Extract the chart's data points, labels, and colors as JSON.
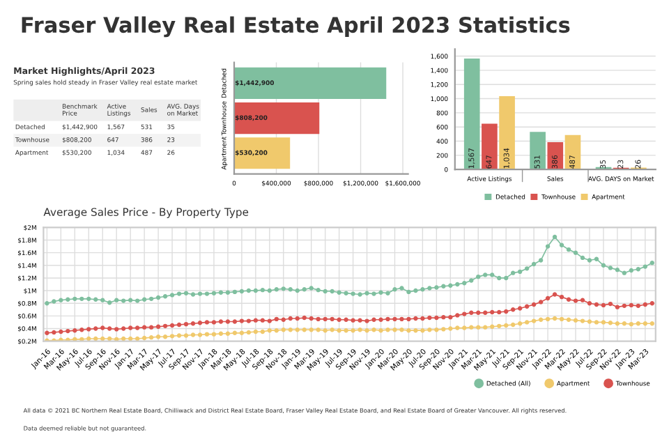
{
  "chart_data": [
    {
      "type": "other",
      "title": "Fraser Valley Real Estate April 2023 Statistics",
      "subtitle": "Market Highlights/April 2023",
      "annotations": [
        "Spring sales hold steady in Fraser Valley real estate market"
      ],
      "categories": [
        "Benchmark Price",
        "Active Listings",
        "Sales",
        "AVG. Days on Market"
      ],
      "y_categories": [
        "Detached",
        "Townhouse",
        "Apartment"
      ],
      "cell_labels": [
        [
          "$1,442,900",
          "1,567",
          "531",
          "35"
        ],
        [
          "$808,200",
          "647",
          "386",
          "23"
        ],
        [
          "$530,200",
          "1,034",
          "487",
          "26"
        ]
      ]
    },
    {
      "type": "bar",
      "orientation": "horizontal",
      "categories": [
        "Detached",
        "Townhouse",
        "Apartment"
      ],
      "values": [
        1442900,
        808200,
        530200
      ],
      "colors": [
        "#7fbf9f",
        "#d9534f",
        "#f0c96c"
      ],
      "value_labels": [
        "$1,442,900",
        "$808,200",
        "$530,200"
      ],
      "xlim": [
        0,
        1650000
      ],
      "xticks": [
        0,
        {
          "value": 400000,
          "label": "$400,000"
        },
        {
          "value": 800000,
          "label": "$800,000"
        },
        {
          "value": 1200000,
          "label": "$1,200,000"
        },
        {
          "value": 1600000,
          "label": "$1,600,000"
        }
      ],
      "grid": "x"
    },
    {
      "type": "bar",
      "categories": [
        "Active Listings",
        "Sales",
        "AVG. DAYS on Market"
      ],
      "series": [
        {
          "name": "Detached",
          "color": "#7fbf9f",
          "values": [
            1567,
            531,
            35
          ],
          "value_labels": [
            "1,567",
            "531",
            "35"
          ]
        },
        {
          "name": "Townhouse",
          "color": "#d9534f",
          "values": [
            647,
            386,
            23
          ],
          "value_labels": [
            "647",
            "386",
            "23"
          ]
        },
        {
          "name": "Apartment",
          "color": "#f0c96c",
          "values": [
            1034,
            487,
            26
          ],
          "value_labels": [
            "1,034",
            "487",
            "26"
          ]
        }
      ],
      "ylim": [
        0,
        1700
      ],
      "yticks": [
        0,
        200,
        400,
        600,
        800,
        {
          "value": 1000,
          "label": "1,000"
        },
        {
          "value": 1200,
          "label": "1,200"
        },
        {
          "value": 1400,
          "label": "1,400"
        },
        {
          "value": 1600,
          "label": "1,600"
        }
      ],
      "grid": "y",
      "legend": "bottom"
    },
    {
      "type": "line",
      "title": "Average Sales Price - By Property Type",
      "categories": [
        "Jan-16",
        null,
        "Mar-16",
        null,
        "May-16",
        null,
        "Jul-16",
        null,
        "Sep-16",
        null,
        "Nov-16",
        null,
        "Jan-17",
        null,
        "Mar-17",
        null,
        "May-17",
        null,
        "Jul-17",
        null,
        "Sep-17",
        null,
        "Nov-17",
        null,
        "Jan-18",
        null,
        "Mar-18",
        null,
        "May-18",
        null,
        "Jul-18",
        null,
        "Sep-18",
        null,
        "Nov-18",
        null,
        "Jan-19",
        null,
        "Mar-19",
        null,
        "May-19",
        null,
        "Jul-19",
        null,
        "Sep-19",
        null,
        "Nov-19",
        null,
        "Jan-20",
        null,
        "Mar-20",
        null,
        "May-20",
        null,
        "Jul-20",
        null,
        "Sep-20",
        null,
        "Nov-20",
        null,
        "Jan-21",
        null,
        "Mar-21",
        null,
        "May-21",
        null,
        "Jul-21",
        null,
        "Sep-21",
        null,
        "Nov-21",
        null,
        "Jan-22",
        null,
        "Mar-22",
        null,
        "May-22",
        null,
        "Jul-22",
        null,
        "Sep-22",
        null,
        "Nov-22",
        null,
        "Jan-23",
        null,
        "Mar-23",
        null
      ],
      "series": [
        {
          "name": "Detached (All)",
          "color": "#7fbf9f",
          "values": [
            0.8,
            0.83,
            0.85,
            0.86,
            0.87,
            0.87,
            0.87,
            0.86,
            0.85,
            0.81,
            0.85,
            0.84,
            0.85,
            0.84,
            0.86,
            0.87,
            0.89,
            0.91,
            0.93,
            0.95,
            0.96,
            0.94,
            0.95,
            0.95,
            0.96,
            0.97,
            0.97,
            0.98,
            0.99,
            1.0,
            1.0,
            1.01,
            1.0,
            1.02,
            1.03,
            1.02,
            1.0,
            1.02,
            1.04,
            1.01,
            0.99,
            0.99,
            0.97,
            0.96,
            0.95,
            0.94,
            0.96,
            0.95,
            0.97,
            0.96,
            1.02,
            1.04,
            0.98,
            1.0,
            1.02,
            1.04,
            1.05,
            1.07,
            1.08,
            1.1,
            1.12,
            1.16,
            1.22,
            1.25,
            1.25,
            1.2,
            1.2,
            1.28,
            1.3,
            1.35,
            1.42,
            1.48,
            1.7,
            1.85,
            1.72,
            1.65,
            1.6,
            1.52,
            1.48,
            1.5,
            1.4,
            1.36,
            1.33,
            1.28,
            1.32,
            1.34,
            1.38,
            1.44
          ]
        },
        {
          "name": "Apartment",
          "color": "#f0c96c",
          "values": [
            0.21,
            0.21,
            0.22,
            0.22,
            0.23,
            0.23,
            0.24,
            0.24,
            0.24,
            0.24,
            0.23,
            0.24,
            0.24,
            0.24,
            0.25,
            0.26,
            0.27,
            0.27,
            0.28,
            0.29,
            0.29,
            0.3,
            0.3,
            0.31,
            0.31,
            0.32,
            0.32,
            0.33,
            0.33,
            0.34,
            0.35,
            0.35,
            0.37,
            0.37,
            0.38,
            0.38,
            0.38,
            0.38,
            0.38,
            0.38,
            0.37,
            0.38,
            0.37,
            0.37,
            0.37,
            0.38,
            0.37,
            0.38,
            0.37,
            0.38,
            0.38,
            0.38,
            0.37,
            0.37,
            0.37,
            0.38,
            0.38,
            0.39,
            0.4,
            0.41,
            0.41,
            0.42,
            0.42,
            0.42,
            0.43,
            0.44,
            0.45,
            0.46,
            0.48,
            0.5,
            0.52,
            0.54,
            0.55,
            0.56,
            0.55,
            0.54,
            0.53,
            0.52,
            0.51,
            0.5,
            0.5,
            0.49,
            0.48,
            0.48,
            0.47,
            0.48,
            0.48,
            0.48
          ]
        },
        {
          "name": "Townhouse",
          "color": "#d9534f",
          "values": [
            0.33,
            0.34,
            0.35,
            0.36,
            0.37,
            0.38,
            0.39,
            0.4,
            0.41,
            0.4,
            0.39,
            0.4,
            0.41,
            0.41,
            0.42,
            0.42,
            0.43,
            0.44,
            0.45,
            0.46,
            0.47,
            0.48,
            0.49,
            0.5,
            0.5,
            0.51,
            0.51,
            0.51,
            0.52,
            0.52,
            0.53,
            0.53,
            0.52,
            0.55,
            0.54,
            0.56,
            0.56,
            0.57,
            0.56,
            0.55,
            0.55,
            0.55,
            0.54,
            0.54,
            0.53,
            0.53,
            0.52,
            0.54,
            0.54,
            0.55,
            0.55,
            0.55,
            0.55,
            0.56,
            0.56,
            0.57,
            0.57,
            0.58,
            0.58,
            0.61,
            0.63,
            0.65,
            0.65,
            0.65,
            0.66,
            0.66,
            0.67,
            0.7,
            0.72,
            0.75,
            0.78,
            0.82,
            0.88,
            0.94,
            0.9,
            0.86,
            0.84,
            0.85,
            0.8,
            0.78,
            0.77,
            0.79,
            0.74,
            0.76,
            0.77,
            0.76,
            0.78,
            0.8
          ]
        }
      ],
      "ylim": [
        0.2,
        2.0
      ],
      "yticks": [
        {
          "value": 0.2,
          "label": "$0.2M"
        },
        {
          "value": 0.4,
          "label": "$0.4M"
        },
        {
          "value": 0.6,
          "label": "$0.6M"
        },
        {
          "value": 0.8,
          "label": "$0.8M"
        },
        {
          "value": 1.0,
          "label": "$1M"
        },
        {
          "value": 1.2,
          "label": "$1.2M"
        },
        {
          "value": 1.4,
          "label": "$1.4M"
        },
        {
          "value": 1.6,
          "label": "$1.6M"
        },
        {
          "value": 1.8,
          "label": "$1.8M"
        },
        {
          "value": 2.0,
          "label": "$2M"
        }
      ],
      "grid": true,
      "marker": "circle",
      "line_style": "solid",
      "legend": "bottom right",
      "annotations": [
        "All data © 2021 BC Northern Real Estate Board, Chilliwack and District Real Estate Board, Fraser Valley Real Estate Board, and Real Estate Board of Greater Vancouver. All rights reserved.",
        "Data deemed reliable but not guaranteed."
      ]
    }
  ]
}
